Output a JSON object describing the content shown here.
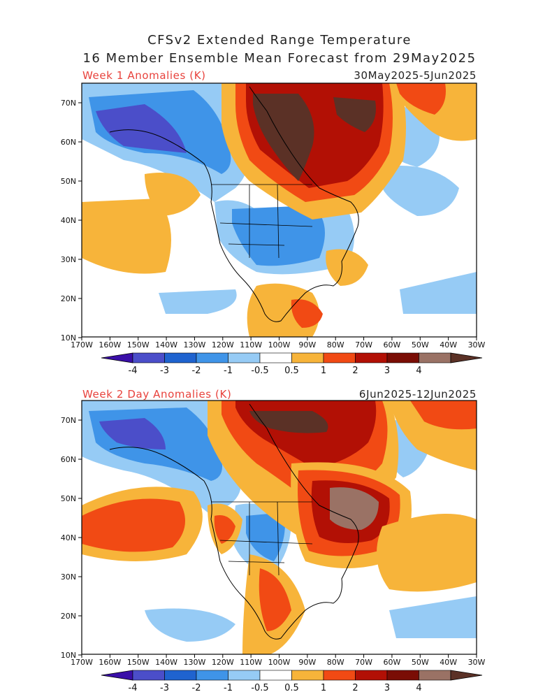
{
  "header": {
    "title_line1": "CFSv2 Extended Range Temperature",
    "title_line2": "16 Member Ensemble Mean Forecast from 29May2025"
  },
  "panels": [
    {
      "label": "Week 1 Anomalies (K)",
      "dates": "30May2025-5Jun2025"
    },
    {
      "label": "Week 2 Day Anomalies (K)",
      "dates": "6Jun2025-12Jun2025"
    }
  ],
  "axes": {
    "lat_labels": [
      "70N",
      "60N",
      "50N",
      "40N",
      "30N",
      "20N",
      "10N"
    ],
    "lon_labels": [
      "170W",
      "160W",
      "150W",
      "140W",
      "130W",
      "120W",
      "110W",
      "100W",
      "90W",
      "80W",
      "70W",
      "60W",
      "50W",
      "40W",
      "30W"
    ]
  },
  "colorbar": {
    "tick_labels": [
      "-4",
      "-3",
      "-2",
      "-1",
      "-0.5",
      "0.5",
      "1",
      "2",
      "3",
      "4"
    ],
    "colors": [
      "#3a0fa8",
      "#4b4ec9",
      "#1f63cf",
      "#3f94e8",
      "#96cbf5",
      "#ffffff",
      "#f7b43a",
      "#f14a14",
      "#b21005",
      "#7a0d05",
      "#9a7265",
      "#5b3126"
    ]
  },
  "map_colors": {
    "neg_strong": "#4b4ec9",
    "neg_med": "#3f94e8",
    "neg_light": "#96cbf5",
    "pos_light": "#f7b43a",
    "pos_med": "#f14a14",
    "pos_strong": "#b21005",
    "pos_darker": "#7a0d05",
    "pos_brown_light": "#9a7265",
    "pos_brown_dark": "#5b3126"
  }
}
